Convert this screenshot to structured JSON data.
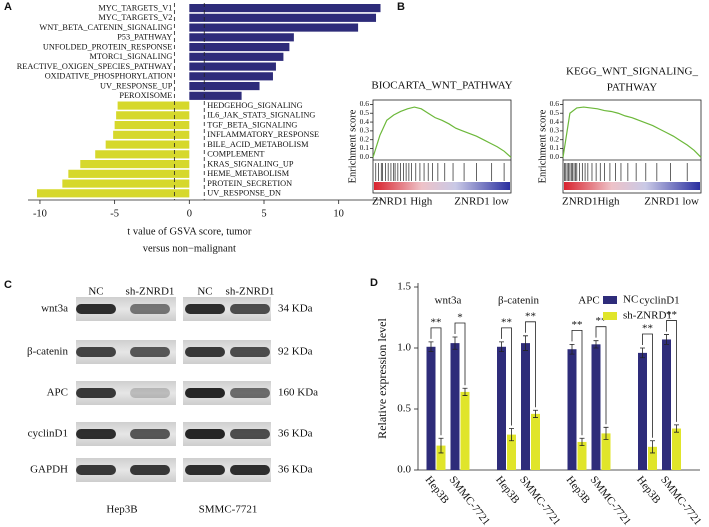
{
  "panel_labels": [
    "A",
    "B",
    "C",
    "D"
  ],
  "chart_data": [
    {
      "type": "hbar",
      "categories": [
        "MYC_TARGETS_V1",
        "MYC_TARGETS_V2",
        "WNT_BETA_CATENIN_SIGNALING",
        "P53_PATHWAY",
        "UNFOLDED_PROTEIN_RESPONSE",
        "MTORC1_SIGNALING",
        "REACTIVE_OXIGEN_SPECIES_PATHWAY",
        "OXIDATIVE_PHOSPHORYLATION",
        "UV_RESPONSE_UP",
        "PEROXISOME",
        "HEDGEHOG_SIGNALING",
        "IL6_JAK_STAT3_SIGNALING",
        "TGF_BETA_SIGNALING",
        "INFLAMMATORY_RESPONSE",
        "BILE_ACID_METABOLISM",
        "COMPLEMENT",
        "KRAS_SIGNALING_UP",
        "HEME_METABOLISM",
        "PROTEIN_SECRETION",
        "UV_RESPONSE_DN"
      ],
      "values": [
        12.8,
        12.5,
        11.3,
        7.0,
        6.7,
        6.3,
        5.8,
        5.6,
        4.7,
        3.5,
        -4.8,
        -4.9,
        -5.0,
        -5.1,
        -5.6,
        -6.3,
        -7.3,
        -8.1,
        -8.5,
        -10.2
      ],
      "positive_color": "#2e2c7a",
      "negative_color": "#d6d82c",
      "xlabel": [
        "t value of GSVA score, tumor",
        "versus non−malignant"
      ],
      "xlim": [
        -10.8,
        12.9
      ],
      "xticks": [
        -10,
        -5,
        0,
        5,
        10
      ],
      "threshold_lines": [
        -1,
        1
      ]
    },
    {
      "type": "line",
      "title": [
        "BIOCARTA_WNT_PATHWAY"
      ],
      "ylabel": "Enrichment score",
      "color": "#6cb83a",
      "x": [
        0,
        5,
        10,
        15,
        20,
        25,
        30,
        35,
        40,
        45,
        50,
        55,
        60,
        65,
        70,
        75,
        80,
        85,
        90,
        95,
        100
      ],
      "values": [
        0,
        0.25,
        0.42,
        0.48,
        0.52,
        0.55,
        0.57,
        0.55,
        0.5,
        0.45,
        0.42,
        0.38,
        0.33,
        0.3,
        0.27,
        0.24,
        0.2,
        0.16,
        0.12,
        0.07,
        0
      ],
      "hits": [
        2,
        4,
        6,
        7,
        9,
        11,
        13,
        15,
        16,
        18,
        20,
        22,
        24,
        26,
        28,
        31,
        34,
        37,
        40,
        43,
        47,
        52,
        58,
        66,
        75,
        86,
        95
      ],
      "left_label": "ZNRD1 High",
      "right_label": "ZNRD1 low",
      "xlim": [
        0,
        100
      ],
      "ylim": [
        -0.03,
        0.65
      ],
      "yticks": [
        {
          "value": 0,
          "label": "0.0"
        },
        0.1,
        0.2,
        0.3,
        0.4,
        0.5,
        0.6
      ]
    },
    {
      "type": "line",
      "title": [
        "KEGG_WNT_SIGNALING_",
        "PATHWAY"
      ],
      "ylabel": "Enrichment score",
      "color": "#6cb83a",
      "x": [
        0,
        5,
        10,
        15,
        20,
        25,
        30,
        35,
        40,
        45,
        50,
        55,
        60,
        65,
        70,
        75,
        80,
        85,
        90,
        95,
        100
      ],
      "values": [
        0,
        0.5,
        0.56,
        0.57,
        0.56,
        0.55,
        0.53,
        0.52,
        0.5,
        0.47,
        0.45,
        0.42,
        0.39,
        0.36,
        0.32,
        0.28,
        0.24,
        0.19,
        0.14,
        0.08,
        0
      ],
      "hits": [
        1,
        2,
        3,
        4,
        5,
        6,
        7,
        8,
        9,
        10,
        12,
        14,
        16,
        18,
        21,
        24,
        27,
        30,
        34,
        38,
        42,
        47,
        53,
        60,
        68,
        78,
        90
      ],
      "left_label": "ZNRD1High",
      "right_label": "ZNRD1 low",
      "xlim": [
        0,
        100
      ],
      "ylim": [
        -0.03,
        0.65
      ],
      "yticks": [
        {
          "value": 0,
          "label": "0.0"
        },
        0.1,
        0.2,
        0.3,
        0.4,
        0.5,
        0.6
      ]
    },
    {
      "type": "grouped_bar",
      "groups": [
        "wnt3a",
        "β-catenin",
        "APC",
        "cyclinD1"
      ],
      "categories": [
        "Hep3B",
        "SMMC-7721",
        "Hep3B",
        "SMMC-7721",
        "Hep3B",
        "SMMC-7721",
        "Hep3B",
        "SMMC-7721"
      ],
      "series": [
        {
          "name": "NC",
          "color": "#2e2c7a",
          "values": [
            1.01,
            1.04,
            1.01,
            1.04,
            0.99,
            1.03,
            0.96,
            1.07
          ],
          "errors": [
            0.04,
            0.05,
            0.04,
            0.06,
            0.04,
            0.03,
            0.04,
            0.04
          ]
        },
        {
          "name": "sh-ZNRD1",
          "color": "#e0e52a",
          "values": [
            0.2,
            0.64,
            0.29,
            0.46,
            0.23,
            0.3,
            0.19,
            0.34
          ],
          "errors": [
            0.06,
            0.03,
            0.05,
            0.03,
            0.03,
            0.05,
            0.05,
            0.03
          ]
        }
      ],
      "significance": [
        "**",
        "*",
        "**",
        "**",
        "**",
        "**",
        "**",
        "**"
      ],
      "ylabel": "Relative expression level",
      "ylim": [
        0,
        1.5
      ],
      "yticks": [
        {
          "value": 0,
          "label": "0.0"
        },
        0.5,
        {
          "value": 1,
          "label": "1.0"
        },
        1.5
      ]
    }
  ],
  "blot": {
    "columns": [
      "NC",
      "sh-ZNRD1",
      "NC",
      "sh-ZNRD1"
    ],
    "rows": [
      {
        "label": "wnt3a",
        "size": "34 KDa"
      },
      {
        "label": "β-catenin",
        "size": "92 KDa"
      },
      {
        "label": "APC",
        "size": "160 KDa"
      },
      {
        "label": "cyclinD1",
        "size": "36 KDa"
      },
      {
        "label": "GAPDH",
        "size": "36 KDa"
      }
    ],
    "cell_lines": [
      "Hep3B",
      "SMMC-7721"
    ]
  }
}
